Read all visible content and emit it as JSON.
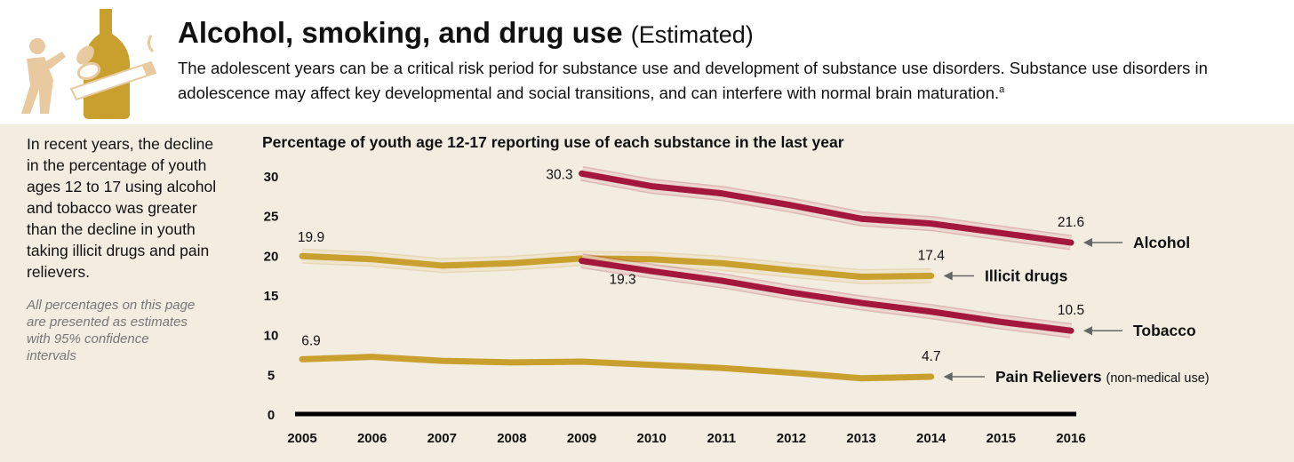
{
  "header": {
    "title": "Alcohol, smoking, and drug use",
    "title_note": "(Estimated)",
    "subtitle": "The adolescent years can be a critical risk period for substance use and development of substance use disorders. Substance use disorders in adolescence may affect key developmental and social transitions, and can interfere with normal brain maturation.",
    "superscript": "a"
  },
  "sidebar": {
    "text": "In recent years, the decline in the percentage of youth ages 12 to 17 using alcohol and tobacco was greater than the decline in youth taking illicit drugs and pain relievers.",
    "note": "All percentages on this page are presented as estimates with 95% confidence intervals"
  },
  "chart_data": {
    "type": "line",
    "title": "Percentage of youth age 12-17 reporting use of each substance in the last year",
    "x": [
      2005,
      2006,
      2007,
      2008,
      2009,
      2010,
      2011,
      2012,
      2013,
      2014,
      2015,
      2016
    ],
    "xlim": [
      2005,
      2016
    ],
    "xticks": [
      2005,
      2006,
      2007,
      2008,
      2009,
      2010,
      2011,
      2012,
      2013,
      2014,
      2015,
      2016
    ],
    "ylim": [
      0,
      30
    ],
    "yticks": [
      0,
      5,
      10,
      15,
      20,
      25,
      30
    ],
    "series": [
      {
        "name": "Alcohol",
        "color": "#a3173c",
        "values": [
          null,
          null,
          null,
          null,
          30.3,
          28.7,
          27.8,
          26.3,
          24.6,
          24.0,
          22.8,
          21.6
        ]
      },
      {
        "name": "Illicit drugs",
        "color": "#c9a02e",
        "values": [
          19.9,
          19.5,
          18.7,
          19.0,
          19.6,
          19.5,
          19.0,
          18.1,
          17.3,
          17.4,
          null,
          null
        ]
      },
      {
        "name": "Tobacco",
        "color": "#a3173c",
        "values": [
          null,
          null,
          null,
          null,
          19.3,
          18.0,
          16.8,
          15.3,
          14.0,
          12.9,
          11.6,
          10.5
        ]
      },
      {
        "name": "Pain Relievers",
        "note": "(non-medical use)",
        "color": "#c9a02e",
        "values": [
          6.9,
          7.2,
          6.7,
          6.5,
          6.6,
          6.2,
          5.8,
          5.2,
          4.5,
          4.7,
          null,
          null
        ]
      }
    ]
  }
}
